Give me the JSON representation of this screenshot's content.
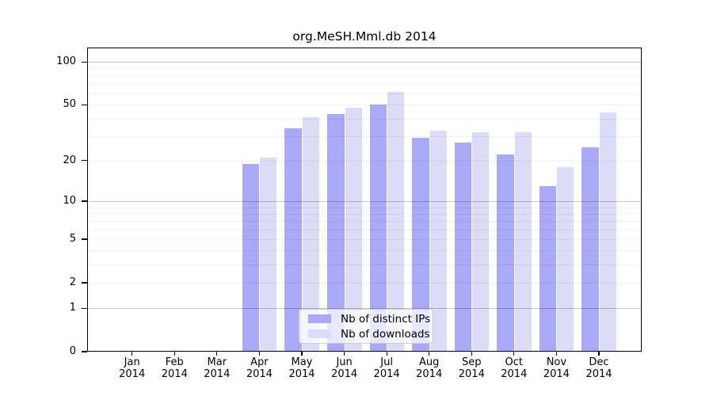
{
  "window": {
    "background": "#ffffff"
  },
  "chart_data": {
    "type": "bar",
    "title": "org.MeSH.Mml.db 2014",
    "categories": [
      "Jan",
      "Feb",
      "Mar",
      "Apr",
      "May",
      "Jun",
      "Jul",
      "Aug",
      "Sep",
      "Oct",
      "Nov",
      "Dec"
    ],
    "x_sublabel": "2014",
    "series": [
      {
        "name": "Nb of distinct IPs",
        "color": "#a9a9f7",
        "values": [
          0,
          0,
          0,
          19,
          34,
          43,
          50,
          29,
          27,
          22,
          13,
          25
        ]
      },
      {
        "name": "Nb of downloads",
        "color": "#dcdcf8",
        "values": [
          0,
          0,
          0,
          21,
          41,
          48,
          62,
          33,
          32,
          32,
          18,
          44
        ]
      }
    ],
    "xlabel": "",
    "ylabel": "",
    "y_scale": "log10(1+v)",
    "y_axis_max": 126,
    "y_tick_values": [
      0,
      1,
      2,
      5,
      10,
      20,
      50,
      100
    ],
    "y_tick_labels": [
      "0",
      "1",
      "2",
      "5",
      "10",
      "20",
      "50",
      "100"
    ],
    "y_major_gridlines": [
      1,
      10,
      100
    ],
    "y_minor_gridlines": [
      2,
      3,
      4,
      5,
      6,
      7,
      8,
      9,
      20,
      30,
      40,
      50,
      60,
      70,
      80,
      90
    ],
    "grid": true,
    "legend_position": "lower-center-inside",
    "colors": {
      "axis": "#000000",
      "major_grid": "rgba(0,0,0,0.22)",
      "minor_grid": "rgba(0,0,0,0.06)",
      "legend_border": "#cccccc",
      "legend_background": "rgba(255,255,255,0.72)"
    }
  }
}
